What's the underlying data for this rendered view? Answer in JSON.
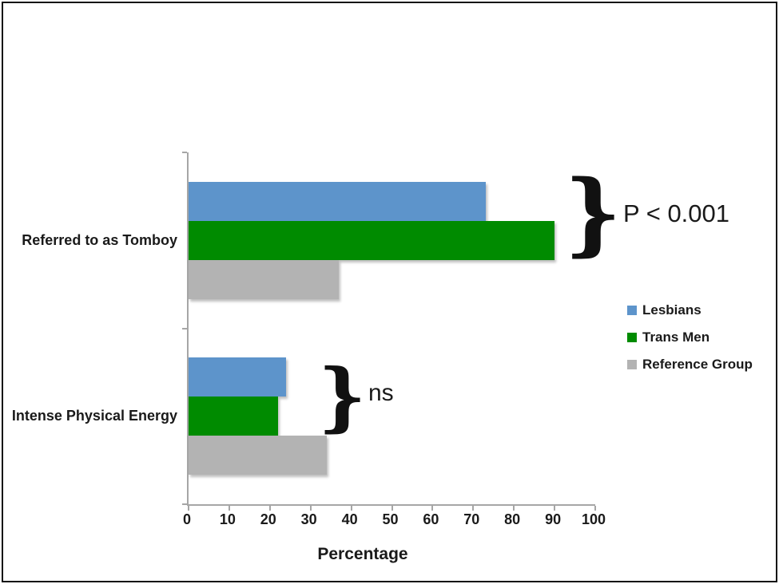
{
  "figure": {
    "background": "#ffffff",
    "border_color": "#111111",
    "axis_color": "#a6a6a6",
    "text_color": "#1a1a1a"
  },
  "chart_data": {
    "type": "bar",
    "orientation": "horizontal",
    "title": "",
    "categories": [
      "Referred to as Tomboy",
      "Intense Physical Energy"
    ],
    "series": [
      {
        "name": "Lesbians",
        "color": "#5d94cb",
        "values": [
          73,
          24
        ]
      },
      {
        "name": "Trans Men",
        "color": "#008b00",
        "values": [
          90,
          22
        ]
      },
      {
        "name": "Reference Group",
        "color": "#b3b3b3",
        "values": [
          37,
          34
        ]
      }
    ],
    "xlabel": "Percentage",
    "ylabel": "",
    "xlim": [
      0,
      100
    ],
    "x_ticks": [
      0,
      10,
      20,
      30,
      40,
      50,
      60,
      70,
      80,
      90,
      100
    ],
    "grid": false,
    "legend_position": "right",
    "annotations": [
      {
        "text": "P < 0.001",
        "brace": "}",
        "applies_to": "Referred to as Tomboy"
      },
      {
        "text": "ns",
        "brace": "}",
        "applies_to": "Intense Physical Energy"
      }
    ]
  }
}
